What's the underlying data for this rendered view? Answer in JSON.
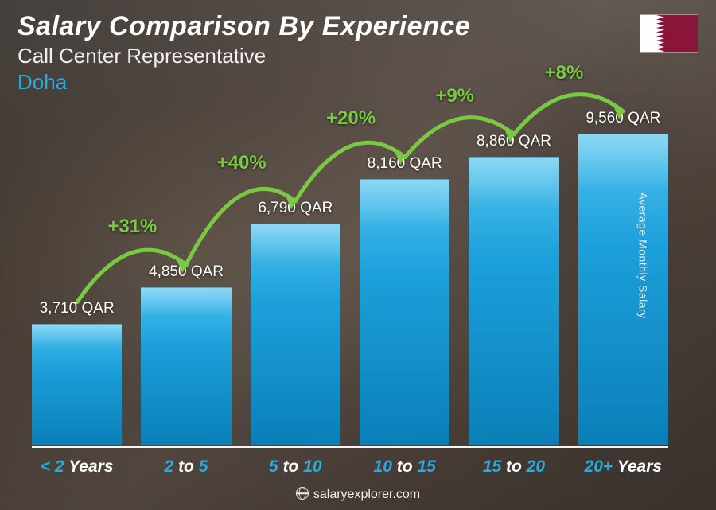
{
  "header": {
    "title": "Salary Comparison By Experience",
    "subtitle": "Call Center Representative",
    "location": "Doha",
    "location_color": "#29abe2"
  },
  "flag": {
    "maroon": "#8a1538",
    "white": "#ffffff"
  },
  "chart": {
    "type": "bar",
    "currency": "QAR",
    "bar_color": "#1da0db",
    "bar_gradient_top": "#4fc3ef",
    "bar_gradient_bottom": "#0a7fb8",
    "accent_color": "#7ac943",
    "arc_stroke": "#7ac943",
    "x_label_num_color": "#29abe2",
    "baseline_color": "#ffffff",
    "value_color": "#ffffff",
    "max_value": 10000,
    "bars": [
      {
        "category_num": "< 2",
        "category_unit": "Years",
        "value": 3710,
        "value_label": "3,710 QAR"
      },
      {
        "category_num": "2 to 5",
        "category_unit": "",
        "value": 4850,
        "value_label": "4,850 QAR",
        "pct": "+31%"
      },
      {
        "category_num": "5 to 10",
        "category_unit": "",
        "value": 6790,
        "value_label": "6,790 QAR",
        "pct": "+40%"
      },
      {
        "category_num": "10 to 15",
        "category_unit": "",
        "value": 8160,
        "value_label": "8,160 QAR",
        "pct": "+20%"
      },
      {
        "category_num": "15 to 20",
        "category_unit": "",
        "value": 8860,
        "value_label": "8,860 QAR",
        "pct": "+9%"
      },
      {
        "category_num": "20+",
        "category_unit": "Years",
        "value": 9560,
        "value_label": "9,560 QAR",
        "pct": "+8%"
      }
    ],
    "x_labels": [
      {
        "pre": "< ",
        "num": "2",
        "post": " Years"
      },
      {
        "pre": "",
        "num1": "2",
        "mid": " to ",
        "num2": "5",
        "post": ""
      },
      {
        "pre": "",
        "num1": "5",
        "mid": " to ",
        "num2": "10",
        "post": ""
      },
      {
        "pre": "",
        "num1": "10",
        "mid": " to ",
        "num2": "15",
        "post": ""
      },
      {
        "pre": "",
        "num1": "15",
        "mid": " to ",
        "num2": "20",
        "post": ""
      },
      {
        "pre": "",
        "num": "20+",
        "post": " Years"
      }
    ]
  },
  "y_axis_label": "Average Monthly Salary",
  "footer": {
    "text": "salaryexplorer.com"
  }
}
